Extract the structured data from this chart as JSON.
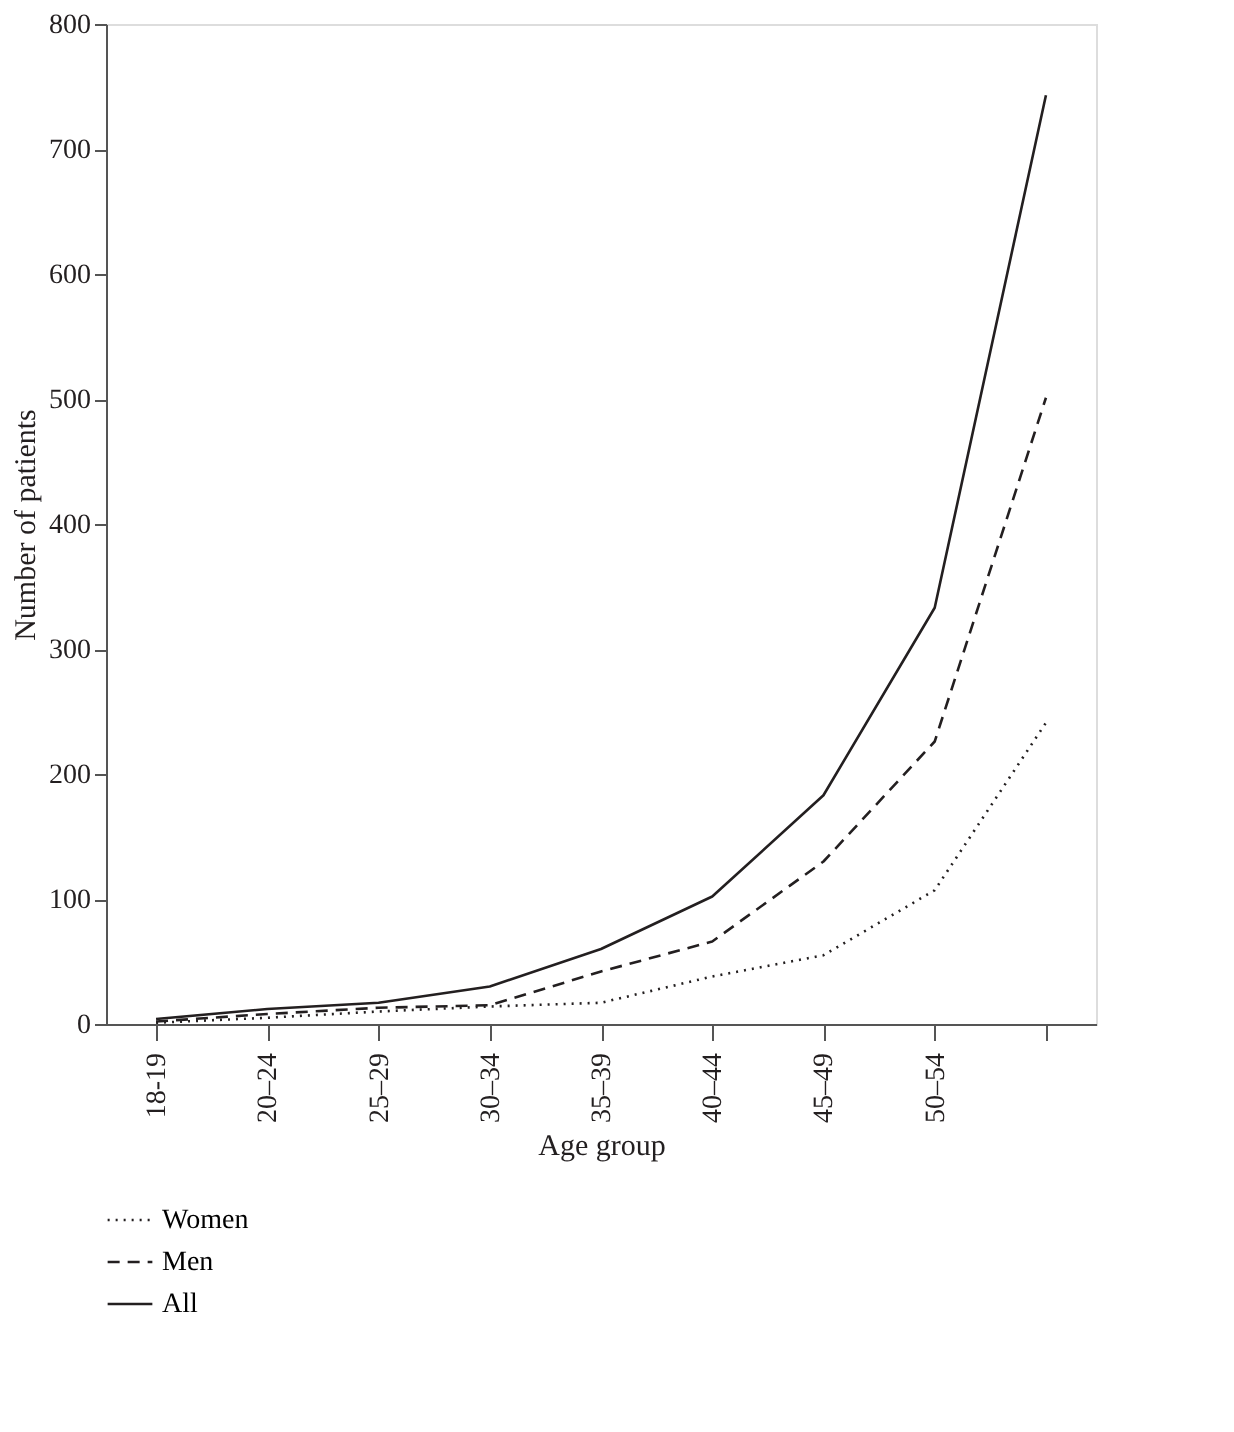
{
  "chart_data": {
    "type": "line",
    "xlabel": "Age group",
    "ylabel": "Number of patients",
    "categories": [
      "18-19",
      "20–24",
      "25–29",
      "30–34",
      "35–39",
      "40–44",
      "45–49",
      "50–54",
      null
    ],
    "ylim": [
      0,
      800
    ],
    "yticks": [
      0,
      100,
      200,
      300,
      400,
      500,
      600,
      700,
      800
    ],
    "grid": false,
    "legend": "bottom left",
    "marker": "none",
    "series": [
      {
        "name": "Women",
        "color": "#231f20",
        "line_style": "dotted",
        "values": [
          1,
          5,
          10,
          14,
          17,
          38,
          55,
          107,
          241
        ]
      },
      {
        "name": "Men",
        "color": "#231f20",
        "line_style": "dashed",
        "values": [
          2,
          8,
          13,
          15,
          42,
          66,
          130,
          226,
          501
        ]
      },
      {
        "name": "All",
        "color": "#231f20",
        "line_style": "solid",
        "values": [
          4,
          12,
          17,
          30,
          60,
          102,
          183,
          333,
          743
        ]
      }
    ]
  }
}
